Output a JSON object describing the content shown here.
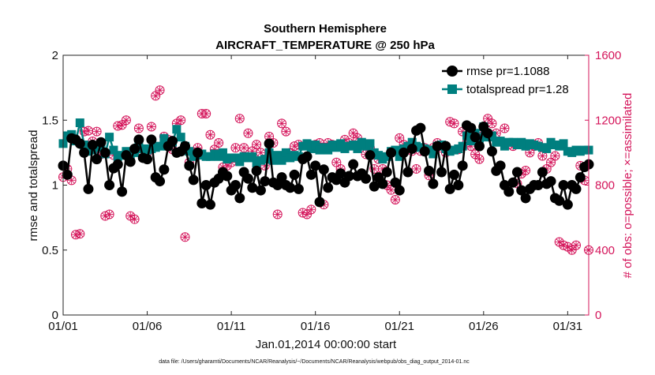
{
  "chart_data": {
    "type": "line",
    "title": "Southern Hemisphere",
    "subtitle": "AIRCRAFT_TEMPERATURE @ 250 hPa",
    "xlabel": "Jan.01,2014 00:00:00 start",
    "ylabel_left": "rmse and totalspread",
    "ylabel_right": "# of obs: o=possible; ×=assimilated",
    "footnote": "data file: /Users/gharamti/Documents/NCAR/Reanalysis/~/Documents/NCAR/Reanalysis/webpub/obs_diag_output_2014-01.nc",
    "xlim": [
      1,
      32.25
    ],
    "xticks": [
      1,
      6,
      11,
      16,
      21,
      26,
      31
    ],
    "xtick_labels": [
      "01/01",
      "01/06",
      "01/11",
      "01/16",
      "01/21",
      "01/26",
      "01/31"
    ],
    "ylim_left": [
      0,
      2
    ],
    "yticks_left": [
      0,
      0.5,
      1,
      1.5,
      2
    ],
    "ytick_labels_left": [
      "0",
      "0.5",
      "1",
      "1.5",
      "2"
    ],
    "ylim_right": [
      0,
      1600
    ],
    "yticks_right": [
      0,
      400,
      800,
      1200,
      1600
    ],
    "ytick_labels_right": [
      "0",
      "400",
      "800",
      "1200",
      "1600"
    ],
    "grid": false,
    "legend_position": "top-right",
    "colors": {
      "rmse": "#000000",
      "totalspread": "#007f7f",
      "obs": "#d4145a"
    },
    "x": [
      1.0,
      1.25,
      1.5,
      1.75,
      2.0,
      2.25,
      2.5,
      2.75,
      3.0,
      3.25,
      3.5,
      3.75,
      4.0,
      4.25,
      4.5,
      4.75,
      5.0,
      5.25,
      5.5,
      5.75,
      6.0,
      6.25,
      6.5,
      6.75,
      7.0,
      7.25,
      7.5,
      7.75,
      8.0,
      8.25,
      8.5,
      8.75,
      9.0,
      9.25,
      9.5,
      9.75,
      10.0,
      10.25,
      10.5,
      10.75,
      11.0,
      11.25,
      11.5,
      11.75,
      12.0,
      12.25,
      12.5,
      12.75,
      13.0,
      13.25,
      13.5,
      13.75,
      14.0,
      14.25,
      14.5,
      14.75,
      15.0,
      15.25,
      15.5,
      15.75,
      16.0,
      16.25,
      16.5,
      16.75,
      17.0,
      17.25,
      17.5,
      17.75,
      18.0,
      18.25,
      18.5,
      18.75,
      19.0,
      19.25,
      19.5,
      19.75,
      20.0,
      20.25,
      20.5,
      20.75,
      21.0,
      21.25,
      21.5,
      21.75,
      22.0,
      22.25,
      22.5,
      22.75,
      23.0,
      23.25,
      23.5,
      23.75,
      24.0,
      24.25,
      24.5,
      24.75,
      25.0,
      25.25,
      25.5,
      25.75,
      26.0,
      26.25,
      26.5,
      26.75,
      27.0,
      27.25,
      27.5,
      27.75,
      28.0,
      28.25,
      28.5,
      28.75,
      29.0,
      29.25,
      29.5,
      29.75,
      30.0,
      30.25,
      30.5,
      30.75,
      31.0,
      31.25,
      31.5,
      31.75,
      32.0,
      32.25
    ],
    "series": [
      {
        "name": "rmse pr=1.1088",
        "axis": "left",
        "marker": "circle",
        "values": [
          1.15,
          1.08,
          1.36,
          1.35,
          1.32,
          1.25,
          0.97,
          1.31,
          1.2,
          1.33,
          1.25,
          1.0,
          1.13,
          1.16,
          0.95,
          1.23,
          1.18,
          1.28,
          1.35,
          1.21,
          1.2,
          1.35,
          1.06,
          1.03,
          1.12,
          1.3,
          1.34,
          1.25,
          1.26,
          1.3,
          1.15,
          1.04,
          1.25,
          0.86,
          1.0,
          0.85,
          1.02,
          1.05,
          1.1,
          1.07,
          0.96,
          1.0,
          0.9,
          1.1,
          1.05,
          0.98,
          1.11,
          0.96,
          1.03,
          1.32,
          1.02,
          1.0,
          1.06,
          1.0,
          0.98,
          1.08,
          0.97,
          1.2,
          1.22,
          1.08,
          1.15,
          0.87,
          1.12,
          0.98,
          1.06,
          1.04,
          1.09,
          1.02,
          1.07,
          1.16,
          1.07,
          1.09,
          1.05,
          1.23,
          0.99,
          1.06,
          1.01,
          1.1,
          1.25,
          1.02,
          0.96,
          1.25,
          1.1,
          1.28,
          1.42,
          1.44,
          1.26,
          1.11,
          1.01,
          1.3,
          1.1,
          1.3,
          0.97,
          1.08,
          1.0,
          1.15,
          1.46,
          1.44,
          1.37,
          1.3,
          1.45,
          1.4,
          1.26,
          1.11,
          1.15,
          1.0,
          0.95,
          1.02,
          1.1,
          0.96,
          0.9,
          0.97,
          1.0,
          1.0,
          1.1,
          1.01,
          1.03,
          0.9,
          0.88,
          1.0,
          0.85,
          1.0,
          0.97,
          1.06,
          1.14,
          1.16
        ]
      },
      {
        "name": "totalspread pr=1.28",
        "axis": "left",
        "marker": "square",
        "values": [
          1.32,
          1.38,
          1.39,
          1.34,
          1.48,
          1.31,
          1.26,
          1.27,
          1.3,
          1.29,
          1.24,
          1.37,
          1.27,
          1.22,
          1.23,
          1.26,
          1.22,
          1.25,
          1.3,
          1.28,
          1.27,
          1.28,
          1.29,
          1.3,
          1.36,
          1.3,
          1.33,
          1.43,
          1.37,
          1.3,
          1.26,
          1.22,
          1.23,
          1.24,
          1.22,
          1.22,
          1.24,
          1.22,
          1.25,
          1.2,
          1.21,
          1.21,
          1.18,
          1.22,
          1.21,
          1.22,
          1.17,
          1.19,
          1.2,
          1.25,
          1.19,
          1.23,
          1.19,
          1.25,
          1.21,
          1.23,
          1.22,
          1.3,
          1.32,
          1.28,
          1.31,
          1.27,
          1.29,
          1.27,
          1.31,
          1.29,
          1.32,
          1.28,
          1.3,
          1.31,
          1.28,
          1.33,
          1.3,
          1.32,
          1.25,
          1.23,
          1.2,
          1.22,
          1.26,
          1.27,
          1.22,
          1.28,
          1.3,
          1.33,
          1.3,
          1.29,
          1.28,
          1.27,
          1.24,
          1.3,
          1.31,
          1.28,
          1.26,
          1.27,
          1.28,
          1.3,
          1.38,
          1.34,
          1.4,
          1.36,
          1.45,
          1.37,
          1.38,
          1.33,
          1.34,
          1.3,
          1.33,
          1.33,
          1.31,
          1.33,
          1.3,
          1.32,
          1.31,
          1.3,
          1.29,
          1.28,
          1.33,
          1.31,
          1.3,
          1.32,
          1.26,
          1.25,
          1.27,
          1.26,
          1.27,
          1.27
        ]
      },
      {
        "name": "possible",
        "axis": "right",
        "marker": "circle-open",
        "values": [
          850,
          900,
          830,
          495,
          500,
          1130,
          1135,
          1070,
          1130,
          990,
          610,
          620,
          985,
          1165,
          1170,
          1200,
          610,
          590,
          1150,
          990,
          1000,
          1160,
          1350,
          1385,
          1100,
          1080,
          1020,
          1180,
          1200,
          480,
          940,
          1000,
          1030,
          1240,
          1240,
          1110,
          1020,
          1060,
          910,
          920,
          940,
          1030,
          1210,
          1030,
          1120,
          1010,
          1050,
          1000,
          920,
          1100,
          1060,
          620,
          1180,
          1130,
          1000,
          1040,
          1050,
          630,
          620,
          650,
          1050,
          1060,
          680,
          1060,
          1050,
          940,
          900,
          1080,
          1060,
          1120,
          1090,
          1050,
          990,
          1030,
          900,
          960,
          900,
          800,
          770,
          710,
          1090,
          1050,
          1040,
          1010,
          900,
          1010,
          1030,
          860,
          1030,
          1060,
          1030,
          1000,
          1190,
          1180,
          1020,
          1130,
          1060,
          1040,
          990,
          960,
          1110,
          1210,
          1180,
          1120,
          1070,
          1150,
          1050,
          1040,
          810,
          870,
          890,
          1000,
          1040,
          1060,
          980,
          900,
          940,
          980,
          450,
          430,
          420,
          400,
          430,
          920,
          830,
          400
        ]
      },
      {
        "name": "assimilated",
        "axis": "right",
        "marker": "x",
        "values": [
          850,
          900,
          830,
          495,
          500,
          1130,
          1135,
          1070,
          1130,
          990,
          610,
          620,
          985,
          1165,
          1170,
          1200,
          610,
          590,
          1150,
          990,
          1000,
          1160,
          1350,
          1385,
          1100,
          1080,
          1020,
          1180,
          1200,
          480,
          940,
          1000,
          1030,
          1240,
          1240,
          1110,
          1020,
          1060,
          910,
          920,
          940,
          1030,
          1210,
          1030,
          1120,
          1010,
          1050,
          1000,
          920,
          1100,
          1060,
          620,
          1180,
          1130,
          1000,
          1040,
          1050,
          630,
          620,
          650,
          1050,
          1060,
          680,
          1060,
          1050,
          940,
          900,
          1080,
          1060,
          1120,
          1090,
          1050,
          990,
          1030,
          900,
          960,
          900,
          800,
          770,
          710,
          1090,
          1050,
          1040,
          1010,
          900,
          1010,
          1030,
          860,
          1030,
          1060,
          1030,
          1000,
          1190,
          1180,
          1020,
          1130,
          1060,
          1040,
          990,
          960,
          1110,
          1210,
          1180,
          1120,
          1070,
          1150,
          1050,
          1040,
          810,
          870,
          890,
          1000,
          1040,
          1060,
          980,
          900,
          940,
          980,
          450,
          430,
          420,
          400,
          430,
          920,
          830,
          400
        ]
      }
    ]
  }
}
